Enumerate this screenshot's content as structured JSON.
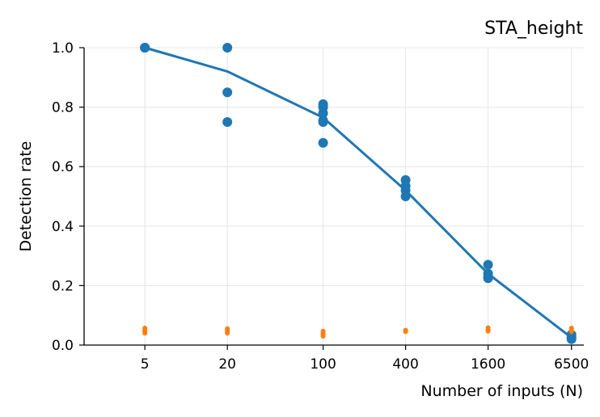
{
  "chart_data": {
    "type": "scatter",
    "title": "STA_height",
    "xlabel": "Number of inputs (N)",
    "ylabel": "Detection rate",
    "xscale": "log",
    "xlim": [
      1.8,
      8000
    ],
    "ylim": [
      0,
      1.0
    ],
    "xticks": [
      5,
      20,
      100,
      400,
      1600,
      6500
    ],
    "xtick_labels": [
      "5",
      "20",
      "100",
      "400",
      "1600",
      "6500"
    ],
    "yticks": [
      0.0,
      0.2,
      0.4,
      0.6,
      0.8,
      1.0
    ],
    "ytick_labels": [
      "0.0",
      "0.2",
      "0.4",
      "0.6",
      "0.8",
      "1.0"
    ],
    "grid": true,
    "colors": {
      "primary": "#1f77b4",
      "secondary": "#ff7f0e",
      "grid": "#e6e6e6"
    },
    "series": [
      {
        "kind": "line",
        "color": "#1f77b4",
        "x": [
          5,
          20,
          100,
          400,
          1600,
          6500
        ],
        "y": [
          1.0,
          0.92,
          0.765,
          0.52,
          0.24,
          0.025
        ]
      },
      {
        "kind": "points",
        "color": "#1f77b4",
        "x": [
          5,
          5,
          5,
          20,
          20,
          20,
          100,
          100,
          100,
          100,
          100,
          100,
          400,
          400,
          400,
          400,
          1600,
          1600,
          1600,
          1600,
          6500,
          6500,
          6500
        ],
        "y": [
          1.0,
          1.0,
          1.0,
          1.0,
          0.85,
          0.75,
          0.81,
          0.8,
          0.78,
          0.755,
          0.75,
          0.68,
          0.555,
          0.535,
          0.52,
          0.5,
          0.27,
          0.24,
          0.23,
          0.225,
          0.035,
          0.025,
          0.02
        ]
      },
      {
        "kind": "small-points",
        "color": "#ff7f0e",
        "x": [
          5,
          5,
          5,
          5,
          20,
          20,
          20,
          20,
          100,
          100,
          100,
          100,
          400,
          400,
          1600,
          1600,
          1600,
          6500,
          6500,
          6500
        ],
        "y": [
          0.057,
          0.05,
          0.045,
          0.04,
          0.055,
          0.05,
          0.045,
          0.04,
          0.047,
          0.04,
          0.035,
          0.03,
          0.05,
          0.045,
          0.058,
          0.052,
          0.047,
          0.057,
          0.05,
          0.045
        ]
      }
    ]
  }
}
